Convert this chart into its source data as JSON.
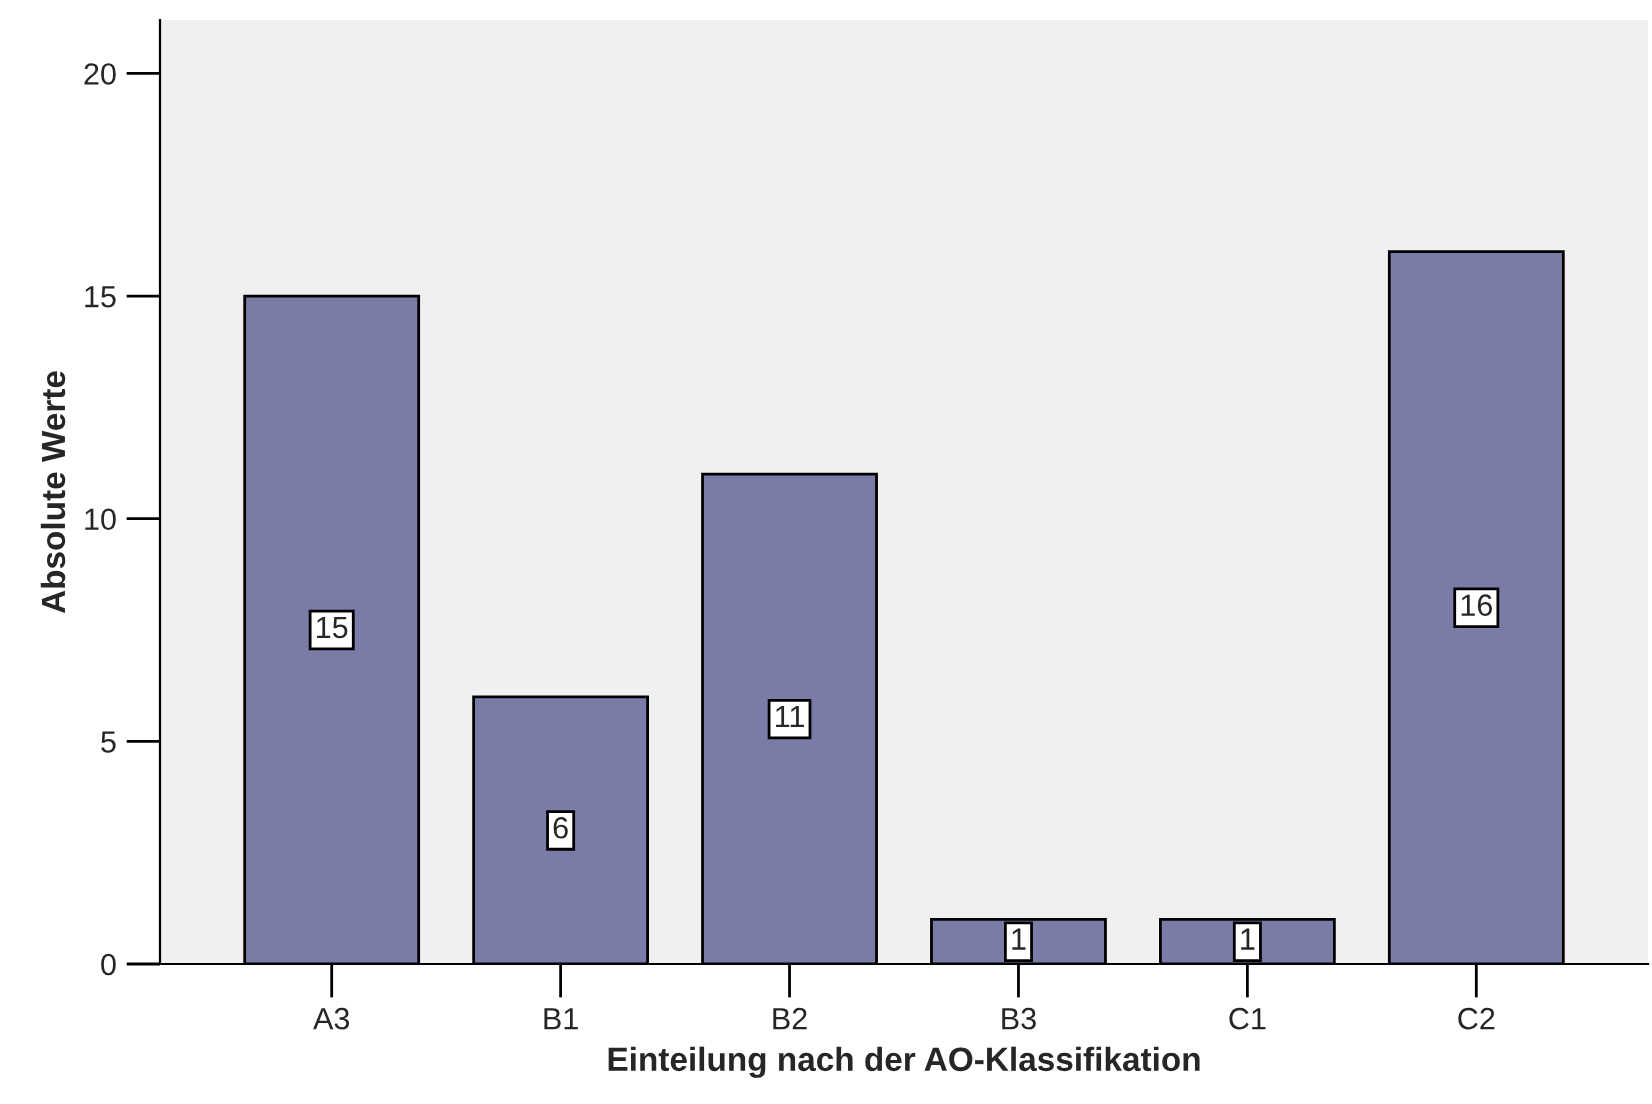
{
  "chart_data": {
    "type": "bar",
    "xlabel": "Einteilung nach der AO-Klassifikation",
    "ylabel": "Absolute Werte",
    "categories": [
      "A3",
      "B1",
      "B2",
      "B3",
      "C1",
      "C2"
    ],
    "values": [
      15,
      6,
      11,
      1,
      1,
      16
    ],
    "color": "#7b7ba8",
    "ylim": [
      0,
      21.2
    ],
    "yticks": [
      0,
      5,
      10,
      15,
      20
    ],
    "grid": false,
    "data_labels": true
  }
}
